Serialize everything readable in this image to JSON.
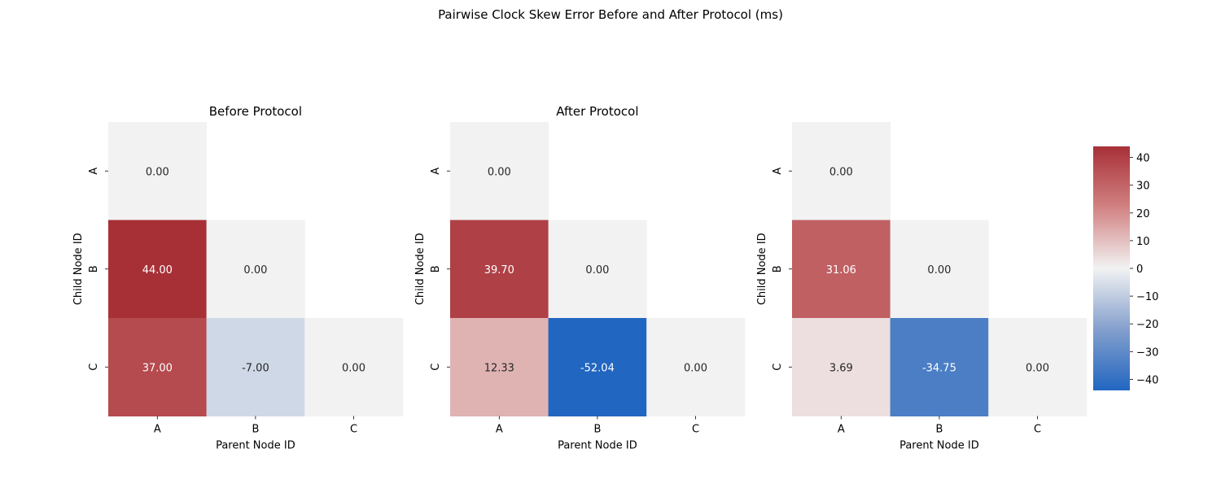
{
  "chart_data": {
    "type": "heatmap",
    "title": "Pairwise Clock Skew Error Before and After Protocol (ms)",
    "vmin": -44,
    "vmax": 44,
    "colormap": "vlag",
    "colorbar_ticks": [
      40,
      30,
      20,
      10,
      0,
      -10,
      -20,
      -30,
      -40
    ],
    "panels": [
      {
        "title": "Before Protocol",
        "xlabel": "Parent Node ID",
        "ylabel": "Child Node ID",
        "x_categories": [
          "A",
          "B",
          "C"
        ],
        "y_categories": [
          "A",
          "B",
          "C"
        ],
        "values": [
          [
            0.0,
            null,
            null
          ],
          [
            44.0,
            0.0,
            null
          ],
          [
            37.0,
            -7.0,
            0.0
          ]
        ]
      },
      {
        "title": "After Protocol",
        "xlabel": "Parent Node ID",
        "ylabel": "Child Node ID",
        "x_categories": [
          "A",
          "B",
          "C"
        ],
        "y_categories": [
          "A",
          "B",
          "C"
        ],
        "values": [
          [
            0.0,
            null,
            null
          ],
          [
            39.7,
            0.0,
            null
          ],
          [
            12.33,
            -52.04,
            0.0
          ]
        ]
      },
      {
        "title": "",
        "xlabel": "Parent Node ID",
        "ylabel": "Child Node ID",
        "x_categories": [
          "A",
          "B",
          "C"
        ],
        "y_categories": [
          "A",
          "B",
          "C"
        ],
        "values": [
          [
            0.0,
            null,
            null
          ],
          [
            31.06,
            0.0,
            null
          ],
          [
            3.69,
            -34.75,
            0.0
          ]
        ]
      }
    ]
  }
}
